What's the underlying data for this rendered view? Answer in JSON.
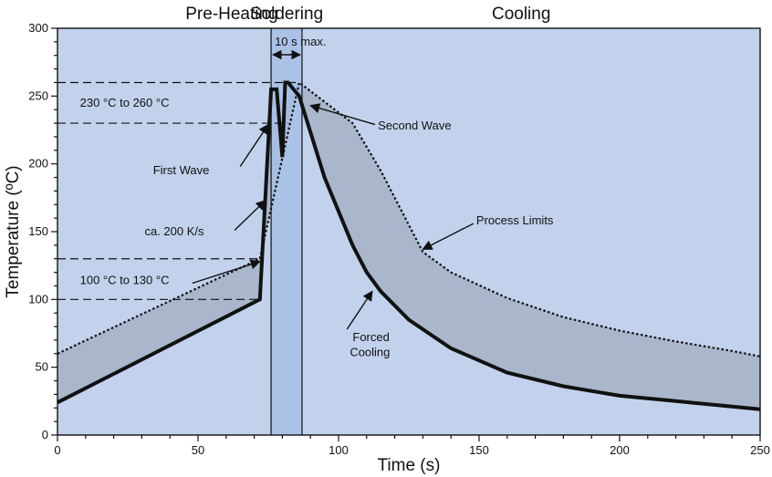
{
  "chart_data": {
    "type": "line",
    "title": "",
    "xlabel": "Time (s)",
    "ylabel": "Temperature (ºC)",
    "xlim": [
      0,
      250
    ],
    "ylim": [
      0,
      300
    ],
    "x_ticks": [
      0,
      50,
      100,
      150,
      200,
      250
    ],
    "y_ticks": [
      0,
      50,
      100,
      150,
      200,
      250,
      300
    ],
    "phases": [
      {
        "label": "Pre-Heating",
        "x_start": 0,
        "x_end": 76
      },
      {
        "label": "Soldering",
        "x_start": 76,
        "x_end": 87
      },
      {
        "label": "Cooling",
        "x_start": 87,
        "x_end": 250
      }
    ],
    "series": [
      {
        "style": "solid",
        "x": [
          0,
          72,
          76,
          78,
          80,
          81,
          82,
          86,
          95,
          105,
          110,
          115,
          125,
          140,
          160,
          180,
          200,
          220,
          240,
          250
        ],
        "y": [
          24,
          100,
          255,
          255,
          205,
          260,
          260,
          250,
          190,
          140,
          120,
          106,
          85,
          64,
          46,
          36,
          29,
          25,
          21,
          19
        ]
      },
      {
        "style": "dotted",
        "x": [
          0,
          72,
          86,
          105,
          115,
          130,
          140,
          160,
          180,
          200,
          220,
          240,
          250
        ],
        "y": [
          60,
          130,
          260,
          230,
          195,
          135,
          120,
          101,
          87,
          77,
          69,
          62,
          58
        ]
      }
    ],
    "reference_lines": [
      {
        "y": 260,
        "x_end": 86
      },
      {
        "y": 230,
        "x_end": 82
      },
      {
        "y": 130,
        "x_end": 72
      },
      {
        "y": 100,
        "x_end": 72
      }
    ],
    "span_label": "10 s max.",
    "annotations": [
      {
        "text": "230 °C to 260 °C",
        "x": 8,
        "y": 245
      },
      {
        "text": "Second Wave",
        "x": 114,
        "y": 228
      },
      {
        "text": "First Wave",
        "x": 34,
        "y": 195
      },
      {
        "text": "Process Limits",
        "x": 149,
        "y": 158
      },
      {
        "text": "ca. 200 K/s",
        "x": 31,
        "y": 150
      },
      {
        "text": "100 °C to 130 °C",
        "x": 8,
        "y": 114
      },
      {
        "text": "Forced",
        "x": 105,
        "y": 72
      },
      {
        "text": "Cooling",
        "x": 104,
        "y": 61
      }
    ],
    "arrows": [
      {
        "from": [
          113,
          229
        ],
        "to": [
          90,
          243
        ]
      },
      {
        "from": [
          65,
          198
        ],
        "to": [
          75,
          229
        ]
      },
      {
        "from": [
          148,
          156
        ],
        "to": [
          130,
          137
        ]
      },
      {
        "from": [
          63,
          151
        ],
        "to": [
          74,
          173
        ]
      },
      {
        "from": [
          48,
          112
        ],
        "to": [
          72,
          128
        ]
      },
      {
        "from": [
          103,
          78
        ],
        "to": [
          112,
          106
        ]
      }
    ],
    "colors": {
      "background": "#c3d2ec",
      "band": "#a9b6cb",
      "soldering_window": "#a7bfe6"
    },
    "grid": false
  }
}
